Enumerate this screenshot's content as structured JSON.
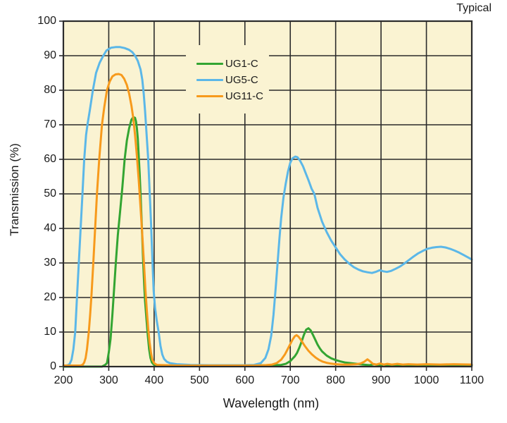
{
  "corner_label": "Typical",
  "chart_data": {
    "type": "line",
    "title": "Typical",
    "xlabel": "Wavelength (nm)",
    "ylabel": "Transmission (%)",
    "xlim": [
      200,
      1100
    ],
    "ylim": [
      0,
      100
    ],
    "x_ticks": [
      200,
      300,
      400,
      500,
      600,
      700,
      800,
      900,
      1000,
      1100
    ],
    "y_ticks": [
      0,
      10,
      20,
      30,
      40,
      50,
      60,
      70,
      80,
      90,
      100
    ],
    "grid": true,
    "plot_bg_color": "#faf3d2",
    "grid_color": "#2b2b2b",
    "text_color": "#1a1a1a",
    "legend_position": "inside-upper-middle-left",
    "series": [
      {
        "name": "UG1-C",
        "color": "#33a532",
        "points": [
          [
            200,
            0
          ],
          [
            285,
            0
          ],
          [
            292,
            0.5
          ],
          [
            296,
            1
          ],
          [
            300,
            4
          ],
          [
            304,
            8
          ],
          [
            308,
            15
          ],
          [
            312,
            23
          ],
          [
            316,
            31
          ],
          [
            320,
            38
          ],
          [
            325,
            45
          ],
          [
            330,
            52
          ],
          [
            335,
            60
          ],
          [
            340,
            65.5
          ],
          [
            345,
            69
          ],
          [
            350,
            71.5
          ],
          [
            354,
            72.2
          ],
          [
            358,
            72
          ],
          [
            360,
            71
          ],
          [
            362,
            69
          ],
          [
            364,
            66
          ],
          [
            366,
            61
          ],
          [
            368,
            56
          ],
          [
            370,
            50
          ],
          [
            372,
            44
          ],
          [
            374,
            37
          ],
          [
            376,
            30
          ],
          [
            378,
            24
          ],
          [
            380,
            19
          ],
          [
            383,
            14
          ],
          [
            386,
            9
          ],
          [
            389,
            5
          ],
          [
            392,
            2.5
          ],
          [
            395,
            1.2
          ],
          [
            400,
            0.5
          ],
          [
            420,
            0.3
          ],
          [
            500,
            0.3
          ],
          [
            600,
            0.3
          ],
          [
            650,
            0.4
          ],
          [
            680,
            0.5
          ],
          [
            690,
            0.8
          ],
          [
            700,
            1.6
          ],
          [
            710,
            3
          ],
          [
            715,
            4
          ],
          [
            720,
            5.5
          ],
          [
            725,
            7.2
          ],
          [
            730,
            9.2
          ],
          [
            735,
            10.7
          ],
          [
            740,
            11.1
          ],
          [
            745,
            10.5
          ],
          [
            750,
            9.2
          ],
          [
            755,
            7.8
          ],
          [
            760,
            6.4
          ],
          [
            765,
            5.3
          ],
          [
            770,
            4.4
          ],
          [
            780,
            3.2
          ],
          [
            790,
            2.4
          ],
          [
            800,
            1.9
          ],
          [
            810,
            1.5
          ],
          [
            820,
            1.2
          ],
          [
            840,
            0.9
          ],
          [
            860,
            0.6
          ],
          [
            875,
            0.4
          ],
          [
            885,
            0.7
          ],
          [
            895,
            0.3
          ],
          [
            905,
            0.6
          ],
          [
            915,
            0.4
          ],
          [
            930,
            0.5
          ],
          [
            950,
            0.4
          ],
          [
            1000,
            0.4
          ],
          [
            1050,
            0.4
          ],
          [
            1100,
            0.4
          ]
        ]
      },
      {
        "name": "UG5-C",
        "color": "#5bb7e8",
        "points": [
          [
            200,
            0.2
          ],
          [
            210,
            0.4
          ],
          [
            214,
            0.8
          ],
          [
            218,
            2
          ],
          [
            222,
            5
          ],
          [
            226,
            10
          ],
          [
            230,
            20
          ],
          [
            234,
            30
          ],
          [
            238,
            40
          ],
          [
            242,
            50
          ],
          [
            246,
            60
          ],
          [
            250,
            67
          ],
          [
            253,
            70
          ],
          [
            258,
            74
          ],
          [
            265,
            80
          ],
          [
            272,
            85
          ],
          [
            280,
            88
          ],
          [
            288,
            90
          ],
          [
            295,
            91.5
          ],
          [
            305,
            92.3
          ],
          [
            315,
            92.5
          ],
          [
            325,
            92.5
          ],
          [
            335,
            92.2
          ],
          [
            345,
            91.7
          ],
          [
            352,
            91
          ],
          [
            358,
            90
          ],
          [
            364,
            88.5
          ],
          [
            370,
            86
          ],
          [
            374,
            83
          ],
          [
            377,
            79
          ],
          [
            380,
            74
          ],
          [
            382,
            70
          ],
          [
            385,
            64
          ],
          [
            387,
            60
          ],
          [
            389,
            54
          ],
          [
            391,
            48
          ],
          [
            393,
            42
          ],
          [
            395,
            35
          ],
          [
            397,
            28
          ],
          [
            399,
            22
          ],
          [
            402,
            17
          ],
          [
            406,
            13
          ],
          [
            410,
            10
          ],
          [
            414,
            6
          ],
          [
            418,
            3.5
          ],
          [
            422,
            2.2
          ],
          [
            428,
            1.4
          ],
          [
            435,
            1
          ],
          [
            450,
            0.7
          ],
          [
            480,
            0.5
          ],
          [
            520,
            0.4
          ],
          [
            560,
            0.4
          ],
          [
            600,
            0.4
          ],
          [
            620,
            0.5
          ],
          [
            635,
            1
          ],
          [
            645,
            2.5
          ],
          [
            652,
            5
          ],
          [
            658,
            9
          ],
          [
            663,
            15
          ],
          [
            668,
            23
          ],
          [
            672,
            30
          ],
          [
            676,
            37
          ],
          [
            680,
            43
          ],
          [
            685,
            49
          ],
          [
            690,
            53
          ],
          [
            695,
            56.5
          ],
          [
            700,
            59
          ],
          [
            705,
            60.3
          ],
          [
            711,
            60.8
          ],
          [
            716,
            60.6
          ],
          [
            722,
            59.5
          ],
          [
            728,
            58
          ],
          [
            734,
            56
          ],
          [
            740,
            54
          ],
          [
            747,
            51.5
          ],
          [
            753,
            50
          ],
          [
            760,
            46
          ],
          [
            770,
            42
          ],
          [
            780,
            39
          ],
          [
            790,
            36.5
          ],
          [
            800,
            34.5
          ],
          [
            810,
            32.5
          ],
          [
            820,
            31
          ],
          [
            830,
            29.8
          ],
          [
            840,
            28.8
          ],
          [
            850,
            28.1
          ],
          [
            860,
            27.6
          ],
          [
            870,
            27.3
          ],
          [
            880,
            27.1
          ],
          [
            888,
            27.4
          ],
          [
            897,
            27.9
          ],
          [
            905,
            27.6
          ],
          [
            913,
            27.4
          ],
          [
            922,
            27.7
          ],
          [
            932,
            28.3
          ],
          [
            942,
            29
          ],
          [
            952,
            29.9
          ],
          [
            962,
            30.9
          ],
          [
            972,
            31.9
          ],
          [
            982,
            32.8
          ],
          [
            992,
            33.5
          ],
          [
            1002,
            34.1
          ],
          [
            1012,
            34.4
          ],
          [
            1022,
            34.6
          ],
          [
            1032,
            34.7
          ],
          [
            1042,
            34.5
          ],
          [
            1052,
            34.1
          ],
          [
            1062,
            33.6
          ],
          [
            1072,
            33
          ],
          [
            1082,
            32.3
          ],
          [
            1092,
            31.6
          ],
          [
            1100,
            31
          ]
        ]
      },
      {
        "name": "UG11-C",
        "color": "#f79a1c",
        "points": [
          [
            200,
            0.3
          ],
          [
            238,
            0.3
          ],
          [
            243,
            0.6
          ],
          [
            246,
            1.2
          ],
          [
            249,
            2.5
          ],
          [
            252,
            5
          ],
          [
            256,
            10
          ],
          [
            259,
            15
          ],
          [
            262,
            21
          ],
          [
            266,
            30
          ],
          [
            270,
            40
          ],
          [
            274,
            50
          ],
          [
            279,
            60
          ],
          [
            285,
            70
          ],
          [
            290,
            75
          ],
          [
            296,
            80
          ],
          [
            302,
            82.5
          ],
          [
            308,
            84
          ],
          [
            315,
            84.6
          ],
          [
            322,
            84.7
          ],
          [
            328,
            84.4
          ],
          [
            334,
            83.3
          ],
          [
            340,
            81.5
          ],
          [
            345,
            79
          ],
          [
            350,
            75.5
          ],
          [
            354,
            72
          ],
          [
            358,
            67
          ],
          [
            362,
            61
          ],
          [
            366,
            54
          ],
          [
            370,
            46
          ],
          [
            374,
            38
          ],
          [
            378,
            29
          ],
          [
            381,
            22
          ],
          [
            384,
            16
          ],
          [
            387,
            11
          ],
          [
            390,
            7
          ],
          [
            393,
            4
          ],
          [
            396,
            2
          ],
          [
            400,
            1
          ],
          [
            406,
            0.5
          ],
          [
            450,
            0.3
          ],
          [
            550,
            0.3
          ],
          [
            620,
            0.3
          ],
          [
            645,
            0.4
          ],
          [
            660,
            0.6
          ],
          [
            670,
            1
          ],
          [
            680,
            2
          ],
          [
            688,
            3.5
          ],
          [
            694,
            5
          ],
          [
            700,
            6.5
          ],
          [
            705,
            7.8
          ],
          [
            710,
            8.8
          ],
          [
            714,
            9.1
          ],
          [
            718,
            8.7
          ],
          [
            722,
            8
          ],
          [
            727,
            7
          ],
          [
            732,
            6
          ],
          [
            740,
            4.6
          ],
          [
            748,
            3.5
          ],
          [
            756,
            2.6
          ],
          [
            764,
            1.9
          ],
          [
            772,
            1.4
          ],
          [
            780,
            1.1
          ],
          [
            790,
            0.85
          ],
          [
            800,
            0.7
          ],
          [
            815,
            0.6
          ],
          [
            830,
            0.6
          ],
          [
            845,
            0.7
          ],
          [
            855,
            0.9
          ],
          [
            863,
            1.4
          ],
          [
            870,
            2.1
          ],
          [
            876,
            1.5
          ],
          [
            882,
            0.8
          ],
          [
            890,
            0.6
          ],
          [
            898,
            0.9
          ],
          [
            906,
            0.6
          ],
          [
            914,
            0.8
          ],
          [
            924,
            0.6
          ],
          [
            936,
            0.8
          ],
          [
            948,
            0.6
          ],
          [
            960,
            0.7
          ],
          [
            980,
            0.6
          ],
          [
            1000,
            0.7
          ],
          [
            1030,
            0.6
          ],
          [
            1060,
            0.7
          ],
          [
            1100,
            0.6
          ]
        ]
      }
    ]
  },
  "legend": {
    "items": [
      {
        "label": "UG1-C",
        "color": "#33a532"
      },
      {
        "label": "UG5-C",
        "color": "#5bb7e8"
      },
      {
        "label": "UG11-C",
        "color": "#f79a1c"
      }
    ]
  }
}
